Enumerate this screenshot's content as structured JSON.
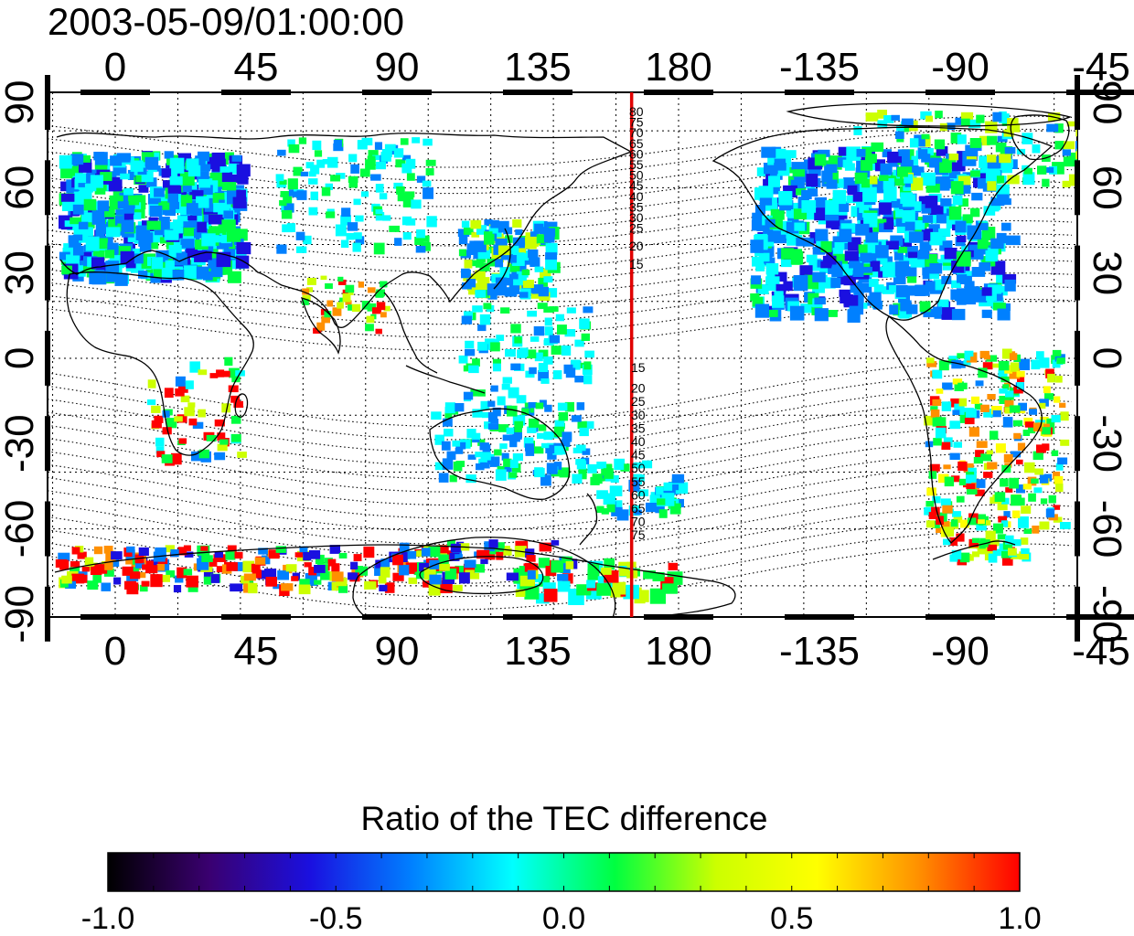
{
  "title": "2003-05-09/01:00:00",
  "axes": {
    "lon_ticks": [
      "0",
      "45",
      "90",
      "135",
      "180",
      "-135",
      "-90",
      "-45"
    ],
    "lat_ticks": [
      "90",
      "60",
      "30",
      "0",
      "-30",
      "-60",
      "-90"
    ]
  },
  "contour_labels_north": [
    "80",
    "75",
    "70",
    "65",
    "60",
    "55",
    "50",
    "45",
    "40",
    "35",
    "30",
    "25",
    "20",
    "15"
  ],
  "contour_labels_south": [
    "15",
    "20",
    "25",
    "30",
    "35",
    "40",
    "45",
    "50",
    "55",
    "60",
    "65",
    "70",
    "75"
  ],
  "red_meridian_lon": 165,
  "colors": {
    "meridian": "#e00000",
    "land_outline": "#000000"
  },
  "colorbar": {
    "title": "Ratio of the TEC difference",
    "min": -1.0,
    "max": 1.0,
    "tick_labels": [
      "-1.0",
      "-0.5",
      "0.0",
      "0.5",
      "1.0"
    ],
    "stops": [
      "#000000",
      "#3a0070",
      "#1a10e0",
      "#0080ff",
      "#00ffff",
      "#00ff40",
      "#ccff00",
      "#ffff00",
      "#ff9000",
      "#ff0000"
    ]
  }
}
